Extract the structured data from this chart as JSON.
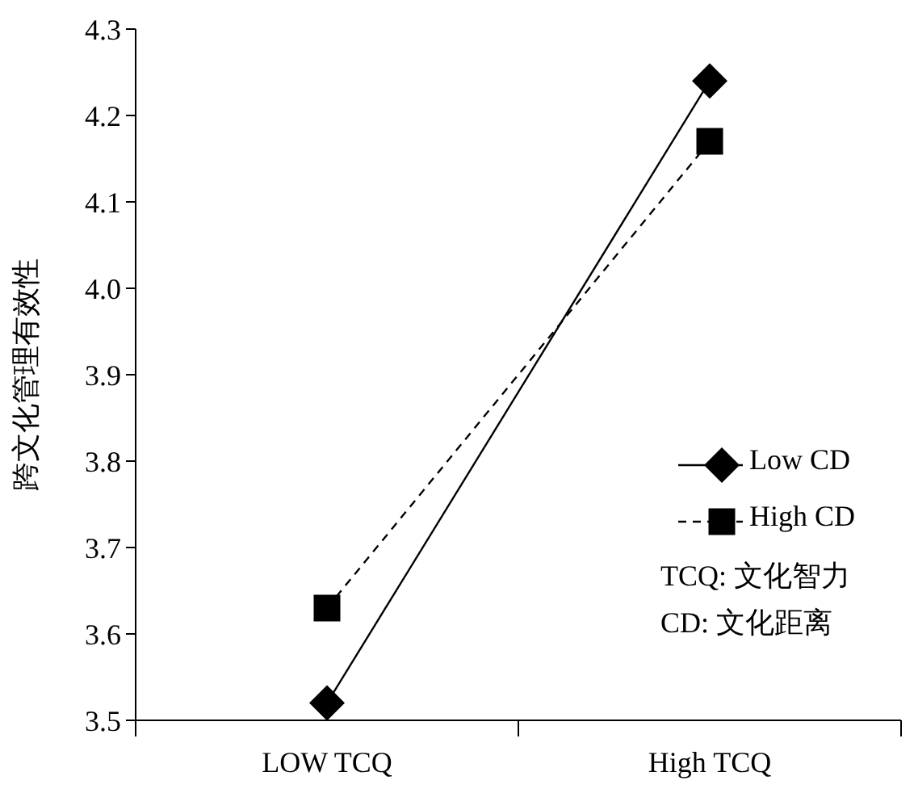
{
  "chart_data": {
    "type": "line",
    "ylabel": "跨文化管理有效性",
    "categories": [
      "LOW TCQ",
      "High TCQ"
    ],
    "series": [
      {
        "name": "Low CD",
        "color": "#000000",
        "values": [
          3.52,
          4.24
        ],
        "marker": "diamond",
        "line_style": "solid"
      },
      {
        "name": "High CD",
        "color": "#000000",
        "values": [
          3.63,
          4.17
        ],
        "marker": "square",
        "line_style": "dashed"
      }
    ],
    "ylim": [
      3.5,
      4.3
    ],
    "yticks": [
      {
        "value": 3.5,
        "label": "3.5"
      },
      {
        "value": 3.6,
        "label": "3.6"
      },
      {
        "value": 3.7,
        "label": "3.7"
      },
      {
        "value": 3.8,
        "label": "3.8"
      },
      {
        "value": 3.9,
        "label": "3.9"
      },
      {
        "value": 4.0,
        "label": "4.0"
      },
      {
        "value": 4.1,
        "label": "4.1"
      },
      {
        "value": 4.2,
        "label": "4.2"
      },
      {
        "value": 4.3,
        "label": "4.3"
      }
    ],
    "grid": false,
    "legend": "right",
    "annotations": [
      "TCQ: 文化智力",
      "CD: 文化距离"
    ]
  }
}
